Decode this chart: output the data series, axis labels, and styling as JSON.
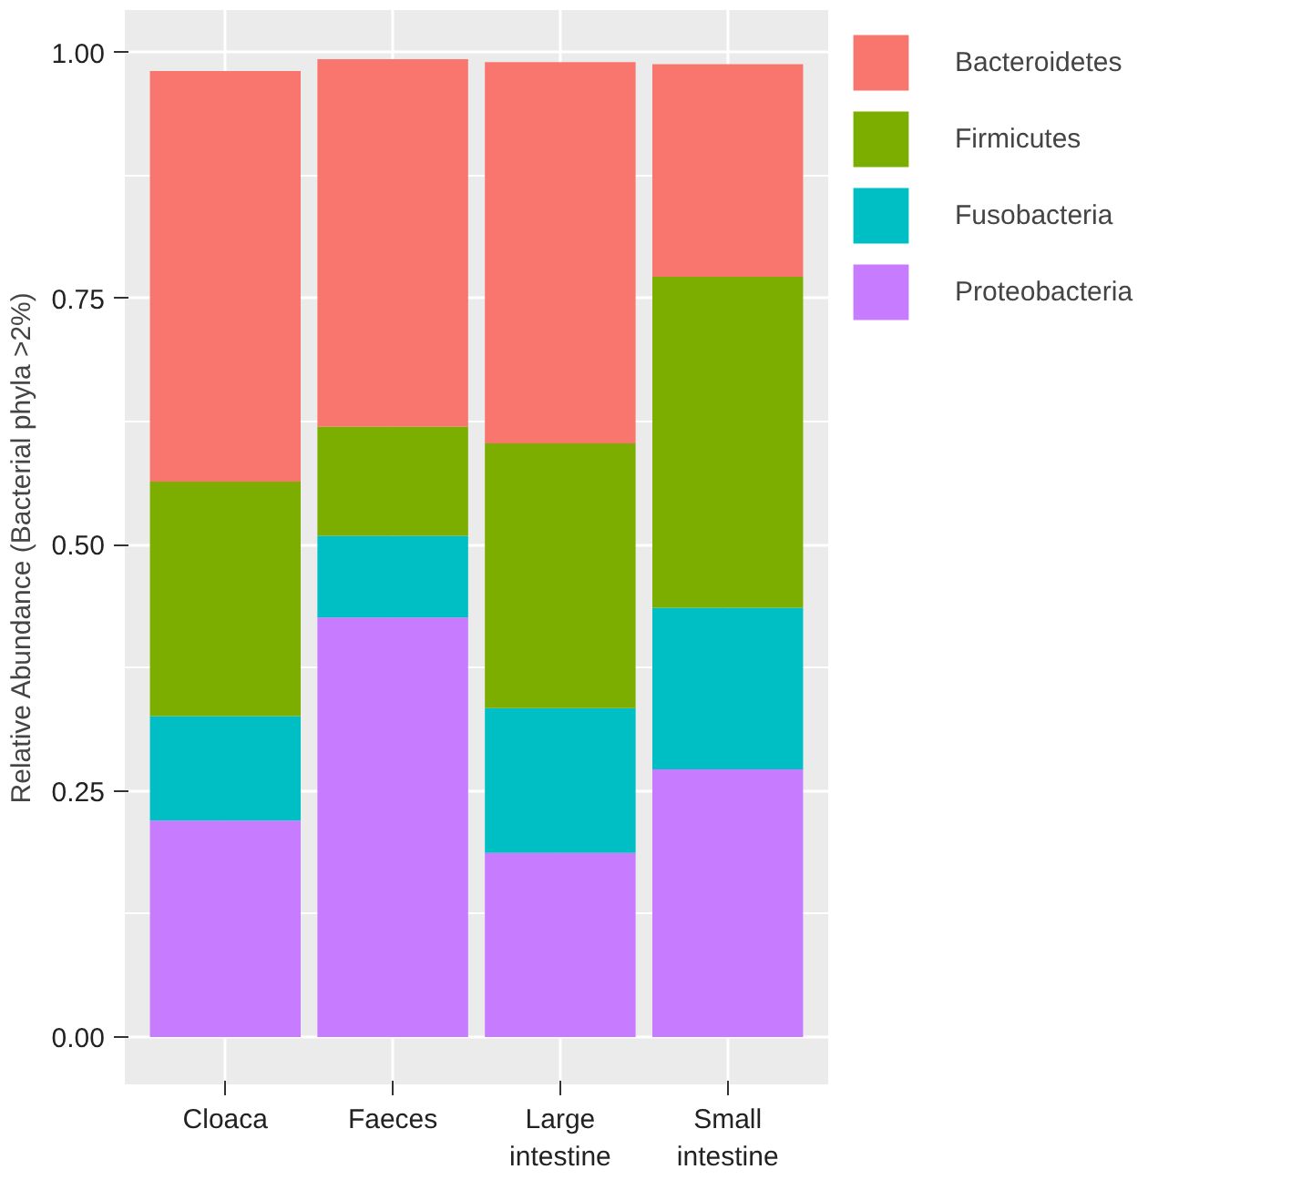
{
  "chart_data": {
    "type": "bar",
    "stacked": true,
    "ylabel": "Relative Abundance (Bacterial phyla >2%)",
    "categories": [
      "Cloaca",
      "Faeces",
      "Large intestine",
      "Small intestine"
    ],
    "series": [
      {
        "name": "Proteobacteria",
        "color": "#c77cff",
        "values": [
          0.22,
          0.426,
          0.187,
          0.272
        ]
      },
      {
        "name": "Fusobacteria",
        "color": "#00bfc4",
        "values": [
          0.106,
          0.083,
          0.147,
          0.164
        ]
      },
      {
        "name": "Firmicutes",
        "color": "#7cae00",
        "values": [
          0.238,
          0.111,
          0.269,
          0.336
        ]
      },
      {
        "name": "Bacteroidetes",
        "color": "#f8766d",
        "values": [
          0.417,
          0.373,
          0.387,
          0.216
        ]
      }
    ],
    "ylim": [
      -0.048,
      1.043
    ],
    "yticks": [
      {
        "value": 0,
        "label": "0.00"
      },
      {
        "value": 0.25,
        "label": "0.25"
      },
      {
        "value": 0.5,
        "label": "0.50"
      },
      {
        "value": 0.75,
        "label": "0.75"
      },
      {
        "value": 1,
        "label": "1.00"
      }
    ],
    "grid": true,
    "legend": "right"
  }
}
